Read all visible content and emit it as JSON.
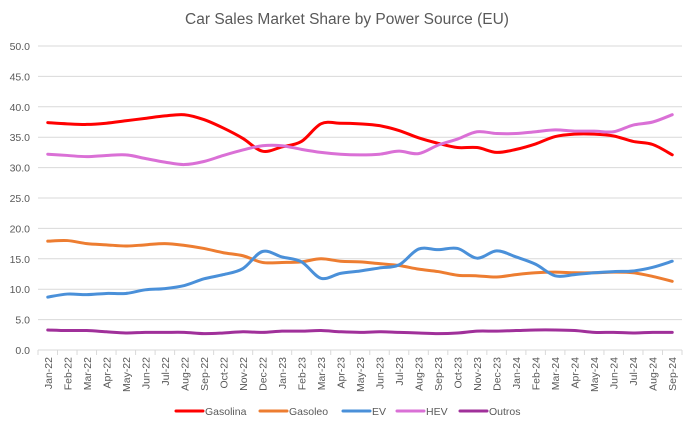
{
  "chart_data": {
    "type": "line",
    "title": "Car Sales Market Share by Power Source (EU)",
    "xlabel": "",
    "ylabel": "",
    "ylim": [
      0,
      50
    ],
    "ytick_step": 5,
    "ytick_labels": [
      "0.0",
      "5.0",
      "10.0",
      "15.0",
      "20.0",
      "25.0",
      "30.0",
      "35.0",
      "40.0",
      "45.0",
      "50.0"
    ],
    "grid": true,
    "smooth": true,
    "legend_position": "bottom",
    "categories": [
      "Jan-22",
      "Feb-22",
      "Mar-22",
      "Apr-22",
      "May-22",
      "Jun-22",
      "Jul-22",
      "Aug-22",
      "Sep-22",
      "Oct-22",
      "Nov-22",
      "Dec-22",
      "Jan-23",
      "Feb-23",
      "Mar-23",
      "Apr-23",
      "May-23",
      "Jun-23",
      "Jul-23",
      "Aug-23",
      "Sep-23",
      "Oct-23",
      "Nov-23",
      "Dec-23",
      "Jan-24",
      "Feb-24",
      "Mar-24",
      "Apr-24",
      "May-24",
      "Jun-24",
      "Jul-24",
      "Aug-24",
      "Sep-24"
    ],
    "series": [
      {
        "name": "Gasolina",
        "color": "#ff0000",
        "values": [
          37.4,
          37.2,
          37.1,
          37.3,
          37.7,
          38.1,
          38.5,
          38.7,
          37.9,
          36.5,
          34.8,
          32.7,
          33.4,
          34.3,
          37.2,
          37.3,
          37.2,
          36.9,
          36.1,
          34.9,
          34.0,
          33.3,
          33.3,
          32.5,
          33.0,
          33.9,
          35.1,
          35.5,
          35.5,
          35.2,
          34.3,
          33.8,
          32.1
        ]
      },
      {
        "name": "Gasoleo",
        "color": "#ed7d31",
        "values": [
          17.9,
          18.0,
          17.5,
          17.3,
          17.1,
          17.3,
          17.5,
          17.2,
          16.7,
          16.0,
          15.5,
          14.4,
          14.4,
          14.5,
          15.0,
          14.6,
          14.5,
          14.2,
          13.9,
          13.3,
          12.9,
          12.3,
          12.2,
          12.0,
          12.4,
          12.7,
          12.8,
          12.7,
          12.7,
          12.8,
          12.7,
          12.1,
          11.3
        ]
      },
      {
        "name": "EV",
        "color": "#4a90d9",
        "values": [
          8.7,
          9.2,
          9.1,
          9.3,
          9.3,
          9.9,
          10.1,
          10.6,
          11.7,
          12.4,
          13.4,
          16.2,
          15.3,
          14.5,
          11.8,
          12.6,
          13.0,
          13.5,
          14.0,
          16.6,
          16.5,
          16.7,
          15.1,
          16.3,
          15.3,
          14.1,
          12.2,
          12.4,
          12.7,
          12.9,
          13.0,
          13.6,
          14.6
        ]
      },
      {
        "name": "HEV",
        "color": "#da70d6",
        "values": [
          32.2,
          32.0,
          31.8,
          32.0,
          32.1,
          31.5,
          30.9,
          30.5,
          31.0,
          32.0,
          32.9,
          33.6,
          33.6,
          33.0,
          32.5,
          32.2,
          32.1,
          32.2,
          32.7,
          32.3,
          33.7,
          34.7,
          35.9,
          35.6,
          35.6,
          35.9,
          36.2,
          36.0,
          36.0,
          35.9,
          37.0,
          37.5,
          38.7
        ]
      },
      {
        "name": "Outros",
        "color": "#a0309a",
        "values": [
          3.3,
          3.2,
          3.2,
          3.0,
          2.8,
          2.9,
          2.9,
          2.9,
          2.7,
          2.8,
          3.0,
          2.9,
          3.1,
          3.1,
          3.2,
          3.0,
          2.9,
          3.0,
          2.9,
          2.8,
          2.7,
          2.8,
          3.1,
          3.1,
          3.2,
          3.3,
          3.3,
          3.2,
          2.9,
          2.9,
          2.8,
          2.9,
          2.9
        ]
      }
    ]
  }
}
